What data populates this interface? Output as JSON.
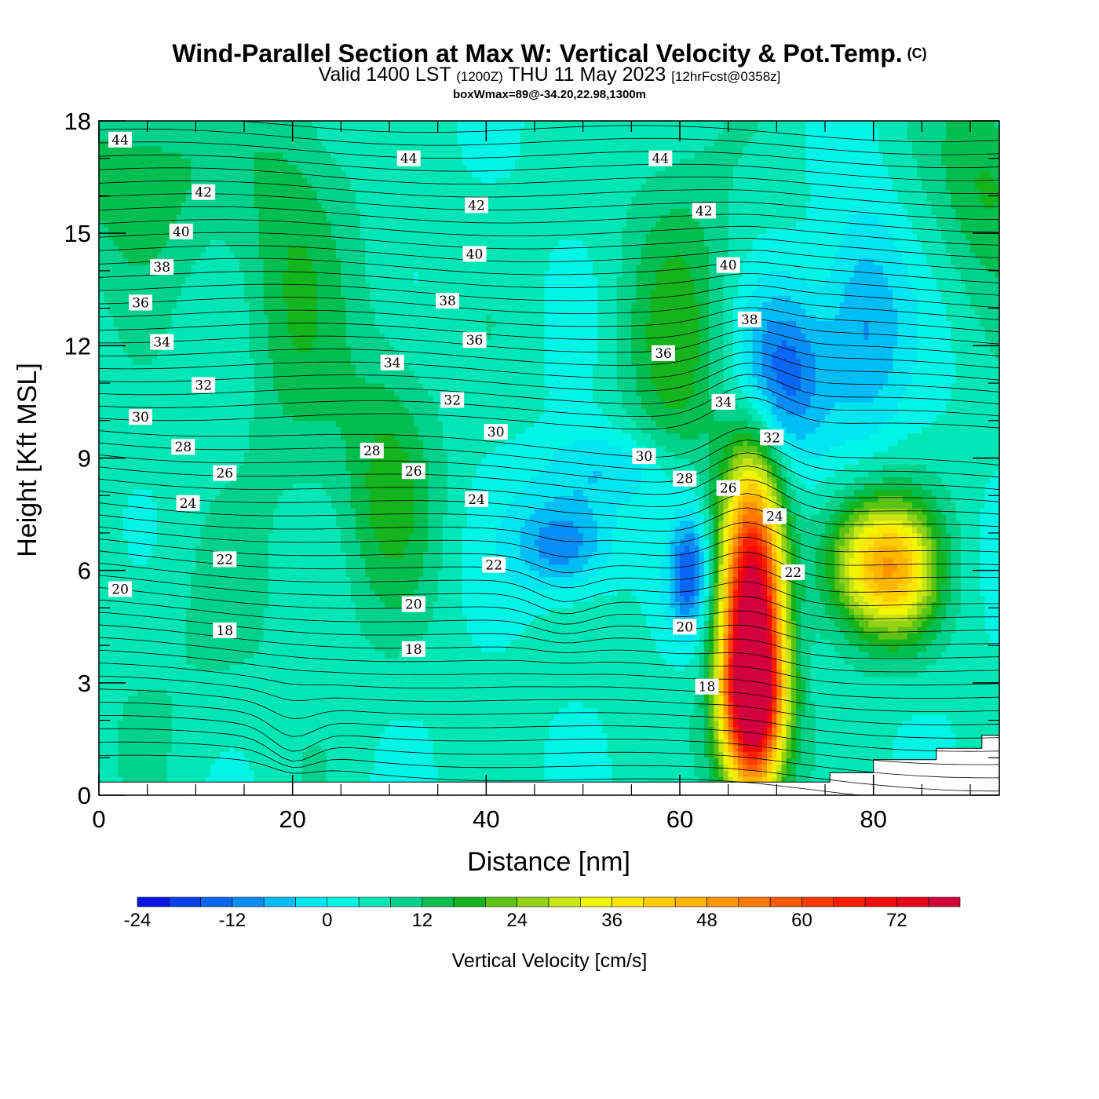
{
  "header": {
    "title": "Wind-Parallel Section at Max W: Vertical Velocity & Pot.Temp.",
    "copyright": "(C)",
    "valid_prefix": "Valid 1400 LST",
    "valid_zulu": "(1200Z)",
    "valid_date": "THU 11 May 2023",
    "forecast": "[12hrFcst@0358z]",
    "box_wmax": "boxWmax=89@-34.20,22.98,1300m"
  },
  "chart_data": {
    "type": "heatmap",
    "xlabel": "Distance [nm]",
    "ylabel": "Height [Kft MSL]",
    "xlim": [
      0,
      93
    ],
    "ylim": [
      0,
      18
    ],
    "x_ticks": [
      0,
      20,
      40,
      60,
      80
    ],
    "y_ticks": [
      0,
      3,
      6,
      9,
      12,
      15,
      18
    ],
    "colorbar": {
      "title": "Vertical Velocity [cm/s]",
      "tick_labels": [
        "-24",
        "-12",
        "0",
        "12",
        "24",
        "36",
        "48",
        "60",
        "72"
      ],
      "tick_values": [
        -24,
        -12,
        0,
        12,
        24,
        36,
        48,
        60,
        72
      ],
      "min": -24,
      "max": 80,
      "bins": [
        {
          "from": -24,
          "to": -20,
          "color": "#0a14e6"
        },
        {
          "from": -20,
          "to": -16,
          "color": "#0a3ff0"
        },
        {
          "from": -16,
          "to": -12,
          "color": "#0a66f5"
        },
        {
          "from": -12,
          "to": -8,
          "color": "#0a8cf5"
        },
        {
          "from": -8,
          "to": -4,
          "color": "#00bef5"
        },
        {
          "from": -4,
          "to": 0,
          "color": "#00e6f0"
        },
        {
          "from": 0,
          "to": 4,
          "color": "#00f5e6"
        },
        {
          "from": 4,
          "to": 8,
          "color": "#00e6b4"
        },
        {
          "from": 8,
          "to": 12,
          "color": "#00d28c"
        },
        {
          "from": 12,
          "to": 16,
          "color": "#00be50"
        },
        {
          "from": 16,
          "to": 20,
          "color": "#14b41e"
        },
        {
          "from": 20,
          "to": 24,
          "color": "#5ac314"
        },
        {
          "from": 24,
          "to": 28,
          "color": "#96d214"
        },
        {
          "from": 28,
          "to": 32,
          "color": "#c8e614"
        },
        {
          "from": 32,
          "to": 36,
          "color": "#f0f500"
        },
        {
          "from": 36,
          "to": 40,
          "color": "#ffe600"
        },
        {
          "from": 40,
          "to": 44,
          "color": "#ffcd00"
        },
        {
          "from": 44,
          "to": 48,
          "color": "#ffb400"
        },
        {
          "from": 48,
          "to": 52,
          "color": "#ff9600"
        },
        {
          "from": 52,
          "to": 56,
          "color": "#ff7800"
        },
        {
          "from": 56,
          "to": 60,
          "color": "#ff5a00"
        },
        {
          "from": 60,
          "to": 64,
          "color": "#ff3c00"
        },
        {
          "from": 64,
          "to": 68,
          "color": "#ff1e00"
        },
        {
          "from": 68,
          "to": 72,
          "color": "#f50a0a"
        },
        {
          "from": 72,
          "to": 76,
          "color": "#e6001e"
        },
        {
          "from": 76,
          "to": 80,
          "color": "#d2003c"
        }
      ]
    },
    "background_w": 5,
    "w_features": [
      {
        "x": 67.5,
        "y": 4.5,
        "sx": 2.2,
        "sy": 3.0,
        "w": 78
      },
      {
        "x": 67.5,
        "y": 2.3,
        "sx": 2.4,
        "sy": 1.4,
        "w": 35
      },
      {
        "x": 79,
        "y": 6.2,
        "sx": 3.2,
        "sy": 1.3,
        "w": 28
      },
      {
        "x": 83,
        "y": 6.0,
        "sx": 2.8,
        "sy": 1.3,
        "w": 26
      },
      {
        "x": 70.5,
        "y": 11.2,
        "sx": 3.5,
        "sy": 1.6,
        "w": -20
      },
      {
        "x": 79,
        "y": 12.5,
        "sx": 3.0,
        "sy": 2.2,
        "w": -14
      },
      {
        "x": 61,
        "y": 6.0,
        "sx": 1.6,
        "sy": 1.2,
        "w": -22
      },
      {
        "x": 48,
        "y": 6.7,
        "sx": 3.5,
        "sy": 0.9,
        "w": -18
      },
      {
        "x": 53,
        "y": 8.7,
        "sx": 5.5,
        "sy": 0.8,
        "w": -10
      },
      {
        "x": 60,
        "y": 12.0,
        "sx": 4.0,
        "sy": 3.5,
        "w": 12
      },
      {
        "x": 30,
        "y": 8.5,
        "sx": 3.5,
        "sy": 2.5,
        "w": 12
      },
      {
        "x": 20,
        "y": 14.0,
        "sx": 4.0,
        "sy": 4.0,
        "w": 10
      },
      {
        "x": 4,
        "y": 16.5,
        "sx": 6.0,
        "sy": 2.0,
        "w": 10
      },
      {
        "x": 92,
        "y": 16.5,
        "sx": 4.0,
        "sy": 2.0,
        "w": 12
      },
      {
        "x": 8,
        "y": 4.0,
        "sx": 10.0,
        "sy": 2.5,
        "w": 3
      },
      {
        "x": 30,
        "y": 2.5,
        "sx": 5.0,
        "sy": 2.5,
        "w": 0
      },
      {
        "x": 28,
        "y": 13.5,
        "sx": 2.5,
        "sy": 3.0,
        "w": 1
      }
    ],
    "terrain": [
      [
        0,
        0.35
      ],
      [
        75.5,
        0.35
      ],
      [
        75.5,
        0.6
      ],
      [
        80,
        0.6
      ],
      [
        80,
        0.95
      ],
      [
        86.5,
        0.95
      ],
      [
        86.5,
        1.25
      ],
      [
        91.2,
        1.25
      ],
      [
        91.2,
        1.6
      ],
      [
        93,
        1.6
      ]
    ],
    "theta_contour_heights": {
      "start_height": 1.0,
      "step": 0.34,
      "count": 50,
      "upper_surface_height": 18.0
    },
    "theta_labels": [
      {
        "text": "44",
        "x": 2.2,
        "y": 17.5
      },
      {
        "text": "44",
        "x": 32,
        "y": 17.0
      },
      {
        "text": "44",
        "x": 58,
        "y": 17.0
      },
      {
        "text": "42",
        "x": 10.8,
        "y": 16.1
      },
      {
        "text": "42",
        "x": 39,
        "y": 15.75
      },
      {
        "text": "42",
        "x": 62.5,
        "y": 15.6
      },
      {
        "text": "40",
        "x": 8.5,
        "y": 15.05
      },
      {
        "text": "40",
        "x": 38.8,
        "y": 14.45
      },
      {
        "text": "40",
        "x": 65,
        "y": 14.15
      },
      {
        "text": "38",
        "x": 6.5,
        "y": 14.1
      },
      {
        "text": "38",
        "x": 36,
        "y": 13.2
      },
      {
        "text": "38",
        "x": 67.2,
        "y": 12.7
      },
      {
        "text": "36",
        "x": 4.3,
        "y": 13.15
      },
      {
        "text": "36",
        "x": 38.8,
        "y": 12.15
      },
      {
        "text": "36",
        "x": 58.3,
        "y": 11.8
      },
      {
        "text": "34",
        "x": 6.5,
        "y": 12.1
      },
      {
        "text": "34",
        "x": 30.3,
        "y": 11.55
      },
      {
        "text": "34",
        "x": 64.5,
        "y": 10.5
      },
      {
        "text": "32",
        "x": 10.8,
        "y": 10.95
      },
      {
        "text": "32",
        "x": 36.5,
        "y": 10.55
      },
      {
        "text": "32",
        "x": 69.5,
        "y": 9.55
      },
      {
        "text": "30",
        "x": 4.3,
        "y": 10.1
      },
      {
        "text": "30",
        "x": 41,
        "y": 9.7
      },
      {
        "text": "30",
        "x": 56.3,
        "y": 9.05
      },
      {
        "text": "28",
        "x": 8.7,
        "y": 9.3
      },
      {
        "text": "28",
        "x": 28.2,
        "y": 9.2
      },
      {
        "text": "28",
        "x": 60.5,
        "y": 8.45
      },
      {
        "text": "26",
        "x": 13,
        "y": 8.6
      },
      {
        "text": "26",
        "x": 32.5,
        "y": 8.65
      },
      {
        "text": "26",
        "x": 65,
        "y": 8.2
      },
      {
        "text": "24",
        "x": 9.2,
        "y": 7.8
      },
      {
        "text": "24",
        "x": 39,
        "y": 7.9
      },
      {
        "text": "24",
        "x": 69.8,
        "y": 7.45
      },
      {
        "text": "22",
        "x": 13,
        "y": 6.3
      },
      {
        "text": "22",
        "x": 40.8,
        "y": 6.15
      },
      {
        "text": "22",
        "x": 71.7,
        "y": 5.95
      },
      {
        "text": "20",
        "x": 2.2,
        "y": 5.5
      },
      {
        "text": "20",
        "x": 32.5,
        "y": 5.1
      },
      {
        "text": "20",
        "x": 60.5,
        "y": 4.5
      },
      {
        "text": "18",
        "x": 13,
        "y": 4.4
      },
      {
        "text": "18",
        "x": 32.5,
        "y": 3.9
      },
      {
        "text": "18",
        "x": 62.8,
        "y": 2.9
      }
    ]
  }
}
